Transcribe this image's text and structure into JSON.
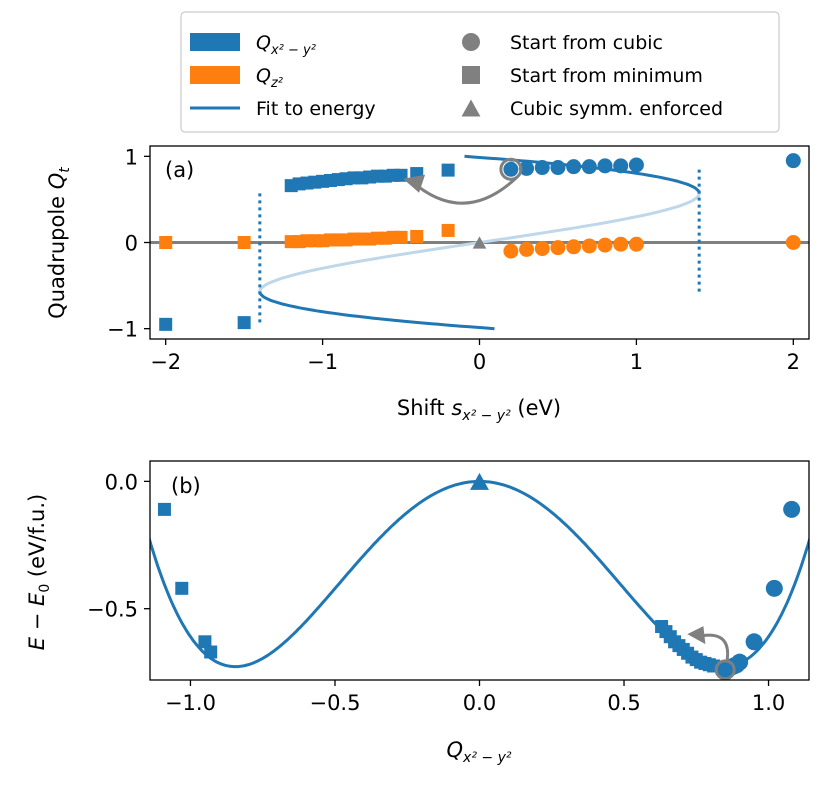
{
  "colors": {
    "blue": "#1f77b4",
    "orange": "#ff7f0e",
    "gray": "#808080",
    "light_blue": "#bfd7ea",
    "axes": "#000000"
  },
  "legend": {
    "entries": [
      {
        "label": "Q",
        "sub": "x² − y²",
        "kind": "patch",
        "color": "#1f77b4"
      },
      {
        "label": "Q",
        "sub": "z²",
        "kind": "patch",
        "color": "#ff7f0e"
      },
      {
        "label": "Fit to energy",
        "kind": "line",
        "color": "#1f77b4"
      },
      {
        "label": "Start from cubic",
        "kind": "circle",
        "color": "#808080"
      },
      {
        "label": "Start from minimum",
        "kind": "square",
        "color": "#808080"
      },
      {
        "label": "Cubic symm. enforced",
        "kind": "triangle",
        "color": "#808080"
      }
    ]
  },
  "chart_data": [
    {
      "panel_label": "(a)",
      "type": "scatter",
      "xlabel_main": "Shift ",
      "xlabel_var": "s",
      "xlabel_sub": "x² − y²",
      "xlabel_unit": " (eV)",
      "ylabel_main": "Quadrupole ",
      "ylabel_var": "Q",
      "ylabel_sub": "t",
      "xlim": [
        -2.1,
        2.1
      ],
      "ylim": [
        -1.12,
        1.12
      ],
      "xticks": [
        -2,
        -1,
        0,
        1,
        2
      ],
      "xtick_labels": [
        "−2",
        "−1",
        "0",
        "1",
        "2"
      ],
      "yticks": [
        -1,
        0,
        1
      ],
      "ytick_labels": [
        "−1",
        "0",
        "1"
      ],
      "series": [
        {
          "name": "Q_x2-y2 start from minimum",
          "marker": "square",
          "color": "#1f77b4",
          "x": [
            -2,
            -1.5,
            -1.2,
            -1.15,
            -1.1,
            -1.05,
            -1.0,
            -0.95,
            -0.9,
            -0.85,
            -0.8,
            -0.75,
            -0.7,
            -0.65,
            -0.6,
            -0.55,
            -0.5,
            -0.4,
            -0.2
          ],
          "y": [
            -0.95,
            -0.93,
            0.66,
            0.68,
            0.69,
            0.7,
            0.71,
            0.72,
            0.73,
            0.74,
            0.75,
            0.75,
            0.76,
            0.77,
            0.77,
            0.78,
            0.78,
            0.8,
            0.84
          ]
        },
        {
          "name": "Q_x2-y2 start from cubic",
          "marker": "circle",
          "color": "#1f77b4",
          "x": [
            0.2,
            0.3,
            0.4,
            0.5,
            0.6,
            0.7,
            0.8,
            0.9,
            1.0,
            2.0
          ],
          "y": [
            0.85,
            0.86,
            0.87,
            0.87,
            0.88,
            0.88,
            0.89,
            0.89,
            0.9,
            0.95
          ]
        },
        {
          "name": "Q_z2 start from minimum",
          "marker": "square",
          "color": "#ff7f0e",
          "x": [
            -2,
            -1.5,
            -1.2,
            -1.15,
            -1.1,
            -1.05,
            -1.0,
            -0.95,
            -0.9,
            -0.85,
            -0.8,
            -0.75,
            -0.7,
            -0.65,
            -0.6,
            -0.55,
            -0.5,
            -0.4,
            -0.2
          ],
          "y": [
            0.0,
            0.0,
            0.01,
            0.01,
            0.02,
            0.02,
            0.02,
            0.03,
            0.03,
            0.03,
            0.04,
            0.04,
            0.04,
            0.05,
            0.05,
            0.06,
            0.06,
            0.07,
            0.14
          ]
        },
        {
          "name": "Q_z2 start from cubic",
          "marker": "circle",
          "color": "#ff7f0e",
          "x": [
            0.2,
            0.3,
            0.4,
            0.5,
            0.6,
            0.7,
            0.8,
            0.9,
            1.0,
            2.0
          ],
          "y": [
            -0.1,
            -0.08,
            -0.07,
            -0.06,
            -0.05,
            -0.04,
            -0.03,
            -0.02,
            -0.02,
            0.0
          ]
        },
        {
          "name": "Cubic symm. enforced",
          "marker": "triangle",
          "color": "#808080",
          "x": [
            0.0
          ],
          "y": [
            0.0
          ]
        }
      ],
      "fit_curve": {
        "name": "Fit to energy",
        "color": "#1f77b4",
        "spinodal_shift": 1.4,
        "spinodal_q": 0.57
      },
      "zero_line": {
        "y": 0,
        "color": "#808080"
      },
      "highlighted_start": {
        "x": 0.2,
        "y": 0.85
      },
      "arrow": {
        "from": [
          0.2,
          0.85
        ],
        "to": [
          -0.5,
          0.74
        ],
        "color": "#808080"
      }
    },
    {
      "panel_label": "(b)",
      "type": "scatter",
      "xlabel_var": "Q",
      "xlabel_sub": "x² − y²",
      "ylabel_pre_var": "E",
      "ylabel_minus": " − ",
      "ylabel_var2": "E",
      "ylabel_sub": "0",
      "ylabel_unit": " (eV/f.u.)",
      "xlim": [
        -1.14,
        1.14
      ],
      "ylim": [
        -0.78,
        0.08
      ],
      "xticks": [
        -1.0,
        -0.5,
        0.0,
        0.5,
        1.0
      ],
      "xtick_labels": [
        "−1.0",
        "−0.5",
        "0.0",
        "0.5",
        "1.0"
      ],
      "yticks": [
        0.0,
        -0.5
      ],
      "ytick_labels": [
        "0.0",
        "−0.5"
      ],
      "series": [
        {
          "name": "Start from minimum (negative)",
          "marker": "square",
          "color": "#1f77b4",
          "x": [
            -1.09,
            -1.03,
            -0.95,
            -0.93
          ],
          "y": [
            -0.11,
            -0.42,
            -0.63,
            -0.67
          ]
        },
        {
          "name": "Start from minimum (positive)",
          "marker": "square",
          "color": "#1f77b4",
          "x": [
            0.63,
            0.645,
            0.66,
            0.675,
            0.69,
            0.705,
            0.72,
            0.735,
            0.75,
            0.765,
            0.78,
            0.795,
            0.81
          ],
          "y": [
            -0.57,
            -0.59,
            -0.61,
            -0.63,
            -0.645,
            -0.66,
            -0.675,
            -0.69,
            -0.7,
            -0.71,
            -0.715,
            -0.72,
            -0.725
          ]
        },
        {
          "name": "Start from cubic",
          "marker": "circle",
          "color": "#1f77b4",
          "x": [
            0.86,
            0.87,
            0.88,
            0.89,
            0.9,
            0.95,
            1.02,
            1.08
          ],
          "y": [
            -0.735,
            -0.73,
            -0.725,
            -0.72,
            -0.71,
            -0.63,
            -0.42,
            -0.11
          ]
        },
        {
          "name": "Cubic symm. enforced",
          "marker": "triangle",
          "color": "#1f77b4",
          "x": [
            0.0
          ],
          "y": [
            0.0
          ]
        }
      ],
      "fit_curve": {
        "name": "Fit to energy",
        "color": "#1f77b4",
        "a": -2.04,
        "b": 1.43
      },
      "highlighted_start": {
        "x": 0.85,
        "y": -0.74
      },
      "arrow": {
        "from": [
          0.85,
          -0.74
        ],
        "to": [
          0.74,
          -0.6
        ],
        "color": "#808080"
      }
    }
  ]
}
